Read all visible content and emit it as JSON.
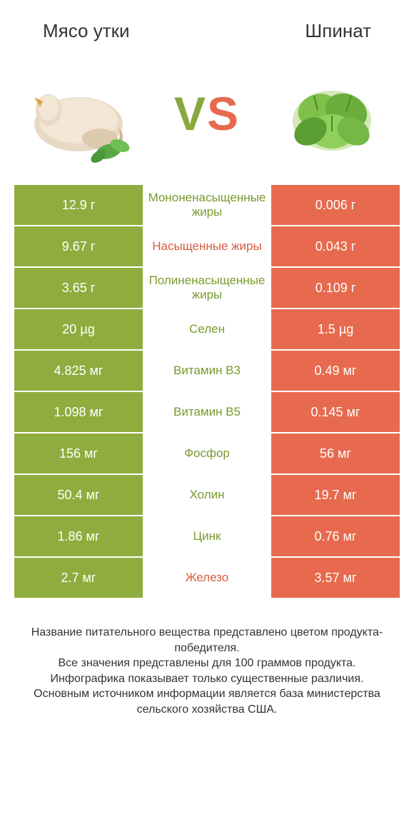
{
  "colors": {
    "green": "#8fad3e",
    "orange": "#e76a4e",
    "mid_green_text": "#7a9a2e",
    "mid_orange_text": "#d95a3f",
    "white": "#ffffff"
  },
  "header": {
    "left_title": "Мясо утки",
    "right_title": "Шпинат"
  },
  "vs": {
    "v": "V",
    "s": "S"
  },
  "rows": [
    {
      "left": "12.9 г",
      "mid": "Мононенасыщенные жиры",
      "right": "0.006 г",
      "winner": "left"
    },
    {
      "left": "9.67 г",
      "mid": "Насыщенные жиры",
      "right": "0.043 г",
      "winner": "right"
    },
    {
      "left": "3.65 г",
      "mid": "Полиненасыщенные жиры",
      "right": "0.109 г",
      "winner": "left"
    },
    {
      "left": "20 µg",
      "mid": "Селен",
      "right": "1.5 µg",
      "winner": "left"
    },
    {
      "left": "4.825 мг",
      "mid": "Витамин B3",
      "right": "0.49 мг",
      "winner": "left"
    },
    {
      "left": "1.098 мг",
      "mid": "Витамин B5",
      "right": "0.145 мг",
      "winner": "left"
    },
    {
      "left": "156 мг",
      "mid": "Фосфор",
      "right": "56 мг",
      "winner": "left"
    },
    {
      "left": "50.4 мг",
      "mid": "Холин",
      "right": "19.7 мг",
      "winner": "left"
    },
    {
      "left": "1.86 мг",
      "mid": "Цинк",
      "right": "0.76 мг",
      "winner": "left"
    },
    {
      "left": "2.7 мг",
      "mid": "Железо",
      "right": "3.57 мг",
      "winner": "right"
    }
  ],
  "footer": {
    "line1": "Название питательного вещества представлено цветом продукта-победителя.",
    "line2": "Все значения представлены для 100 граммов продукта.",
    "line3": "Инфографика показывает только существенные различия.",
    "line4": "Основным источником информации является база министерства сельского хозяйства США."
  }
}
